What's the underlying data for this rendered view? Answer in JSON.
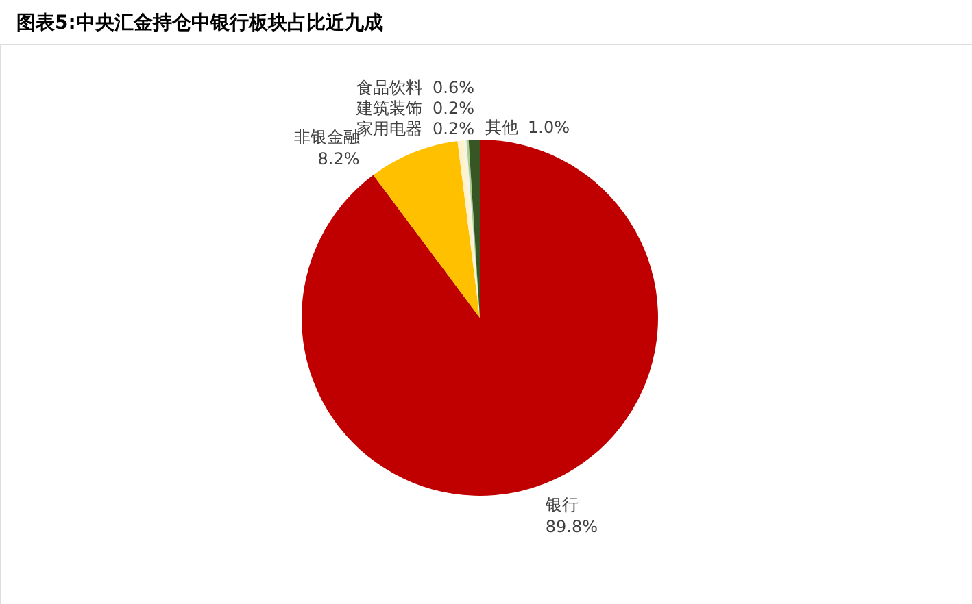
{
  "chart_data": {
    "type": "pie",
    "title": "图表5:中央汇金持仓中银行板块占比近九成",
    "categories": [
      "银行",
      "非银金融",
      "食品饮料",
      "建筑装饰",
      "家用电器",
      "其他"
    ],
    "values": [
      89.8,
      8.2,
      0.6,
      0.2,
      0.2,
      1.0
    ],
    "colors": [
      "#c00000",
      "#ffc000",
      "#fff2cc",
      "#f2f2f2",
      "#a9d18e",
      "#375623"
    ],
    "value_labels": [
      "89.8%",
      "8.2%",
      "0.6%",
      "0.2%",
      "0.2%",
      "1.0%"
    ]
  }
}
